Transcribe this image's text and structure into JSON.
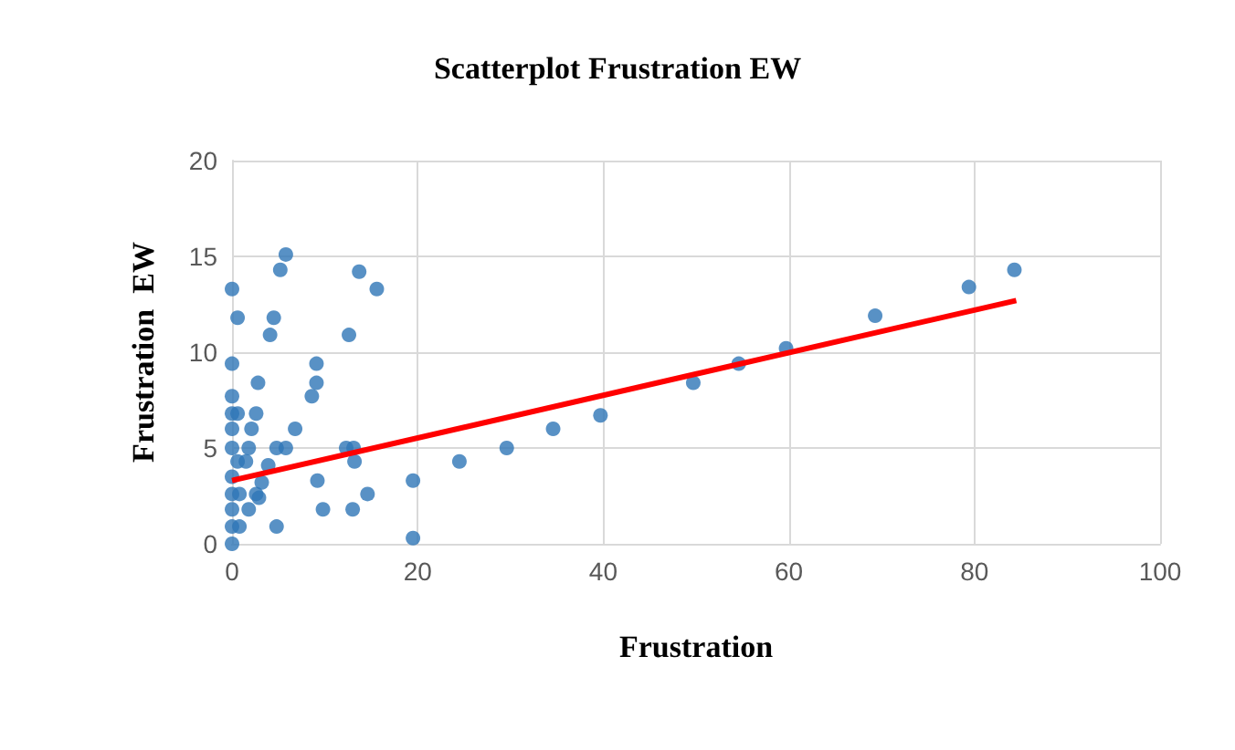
{
  "chart_data": {
    "type": "scatter",
    "title": "Scatterplot Frustration EW",
    "xlabel": "Frustration",
    "ylabel": "Frustration  EW",
    "xlim": [
      0,
      100
    ],
    "xticks": [
      0,
      20,
      40,
      60,
      80,
      100
    ],
    "ylim": [
      0,
      20
    ],
    "yticks": [
      0,
      5,
      10,
      15,
      20
    ],
    "grid": true,
    "marker": "circle",
    "series": [
      {
        "color": "#2e75b6",
        "x": [
          0,
          0.6,
          5.8,
          5.2,
          4.5,
          4.1,
          12.6,
          13.7,
          15.6,
          0,
          2.8,
          9.1,
          9.1,
          8.6,
          0,
          0,
          0.6,
          2.6,
          0,
          2.1,
          6.8,
          0,
          1.8,
          4.8,
          5.8,
          12.3,
          13.1,
          0.6,
          1.5,
          3.9,
          13.2,
          0,
          9.2,
          0,
          0.8,
          2.6,
          3.2,
          1.8,
          0,
          2.9,
          9.8,
          13,
          14.6,
          0,
          0.8,
          4.8,
          0,
          19.5,
          19.5,
          24.5,
          29.6,
          34.6,
          39.7,
          49.7,
          54.6,
          59.7,
          69.3,
          79.4,
          84.3
        ],
        "values": [
          13.3,
          11.8,
          15.1,
          14.3,
          11.8,
          10.9,
          10.9,
          14.2,
          13.3,
          9.4,
          8.4,
          9.4,
          8.4,
          7.7,
          7.7,
          6.8,
          6.8,
          6.8,
          6,
          6,
          6,
          5,
          5,
          5,
          5,
          5,
          5,
          4.3,
          4.3,
          4.1,
          4.3,
          3.5,
          3.3,
          2.6,
          2.6,
          2.6,
          3.2,
          1.8,
          1.8,
          2.4,
          1.8,
          1.8,
          2.6,
          0.9,
          0.9,
          0.9,
          0,
          3.3,
          0.3,
          4.3,
          5,
          6,
          6.7,
          8.4,
          9.4,
          10.2,
          11.9,
          13.4,
          14.3
        ]
      },
      {
        "type": "line",
        "color": "#ff0000",
        "x": [
          0,
          84.5
        ],
        "values": [
          3.3,
          12.7
        ],
        "marker": "none",
        "line_style": "solid"
      }
    ]
  }
}
